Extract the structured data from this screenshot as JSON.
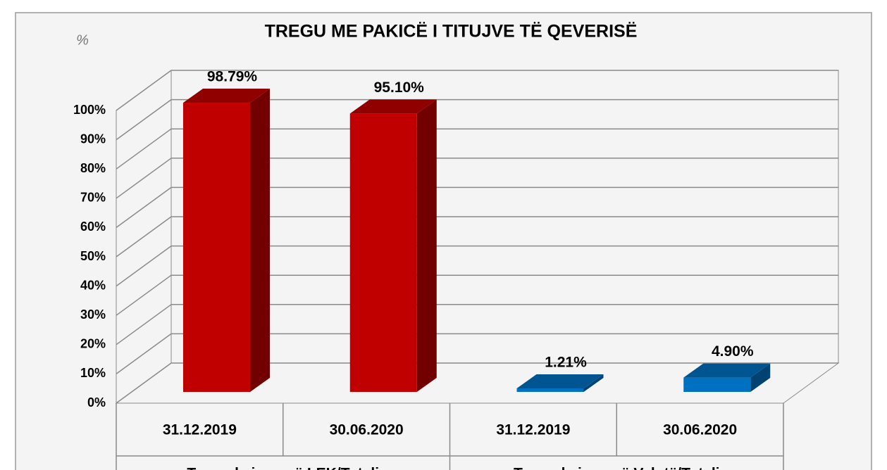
{
  "chart_data": {
    "type": "bar3d",
    "title": "TREGU ME PAKICË I TITUJVE TË QEVERISË",
    "y_unit": "%",
    "categories": [
      "31.12.2019",
      "30.06.2020",
      "31.12.2019",
      "30.06.2020"
    ],
    "groups": [
      "Transaksione në LEK/Totali",
      "Transaksione në Valutë/Totali"
    ],
    "values": [
      98.79,
      95.1,
      1.21,
      4.9
    ],
    "value_labels": [
      "98.79%",
      "95.10%",
      "1.21%",
      "4.90%"
    ],
    "colors": [
      "#c00000",
      "#c00000",
      "#0070c0",
      "#0070c0"
    ],
    "ylim": [
      0,
      100
    ],
    "yticks": [
      {
        "value": 0,
        "label": "0%"
      },
      {
        "value": 10,
        "label": "10%"
      },
      {
        "value": 20,
        "label": "20%"
      },
      {
        "value": 30,
        "label": "30%"
      },
      {
        "value": 40,
        "label": "40%"
      },
      {
        "value": 50,
        "label": "50%"
      },
      {
        "value": 60,
        "label": "60%"
      },
      {
        "value": 70,
        "label": "70%"
      },
      {
        "value": 80,
        "label": "80%"
      },
      {
        "value": 90,
        "label": "90%"
      },
      {
        "value": 100,
        "label": "100%"
      }
    ],
    "grid": true
  }
}
